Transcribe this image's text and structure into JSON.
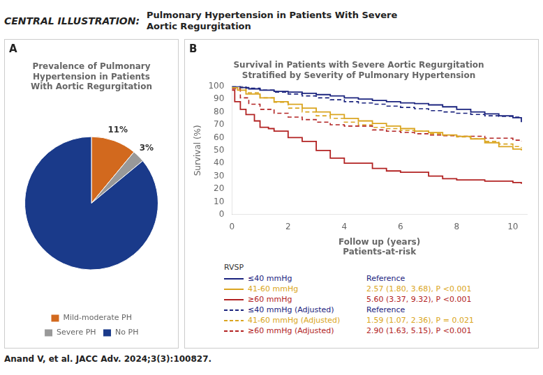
{
  "title": "CENTRAL ILLUSTRATION:",
  "subtitle": "Pulmonary Hypertension in Patients With Severe\nAortic Regurgitation",
  "annotations": [
    "Anand V, et al. JACC Adv. 2024;3(3):100827."
  ],
  "chart_data": [
    {
      "type": "pie",
      "title": "Prevalence of Pulmonary\nHypertension in Patients\nWith Aortic Regurgitation",
      "annotations": [
        "A"
      ],
      "categories": [
        "Mild-moderate PH",
        "Severe PH",
        "No PH"
      ],
      "values": [
        11,
        3,
        86
      ],
      "colors": [
        "#D2691E",
        "#999999",
        "#1a3a8a"
      ],
      "data_labels": true,
      "value_labels": [
        "11%",
        "3%",
        null
      ],
      "legend": "bottom"
    },
    {
      "type": "step",
      "title": "Survival in Patients with Severe Aortic Regurgitation\nStratified by Severity of Pulmonary Hypertension",
      "annotations": [
        "B",
        "RVSP",
        "Patients-at-risk"
      ],
      "xlabel": "Follow up (years)",
      "ylabel": "Survival (%)",
      "xlim": [
        0,
        10.5
      ],
      "ylim": [
        0,
        100
      ],
      "xticks": [
        0,
        2,
        4,
        6,
        8,
        10
      ],
      "yticks": [
        0,
        10,
        20,
        30,
        40,
        50,
        60,
        70,
        80,
        90,
        100
      ],
      "grid": false,
      "legend": "bottom",
      "series": [
        {
          "name": "≤40 mmHg",
          "annotation": "Reference",
          "color": "#1a237e",
          "line_style": "solid",
          "x": [
            0,
            0.3,
            0.6,
            1,
            1.5,
            2,
            2.5,
            3,
            3.5,
            4,
            4.5,
            5,
            5.5,
            6,
            6.5,
            7,
            7.5,
            8,
            8.5,
            9,
            9.5,
            10,
            10.3
          ],
          "values": [
            100,
            99,
            98,
            97,
            96,
            95.5,
            94.5,
            93.5,
            92.5,
            91,
            90,
            89,
            88,
            87,
            86.5,
            85.5,
            84,
            82,
            80,
            78.5,
            77,
            75.5,
            72
          ]
        },
        {
          "name": "41-60 mmHg",
          "annotation": "2.57 (1.80, 3.68), P <0.001",
          "color": "#DAA520",
          "line_style": "solid",
          "x": [
            0,
            0.2,
            0.5,
            1,
            1.5,
            2,
            2.5,
            3,
            3.5,
            4,
            4.5,
            5,
            5.5,
            6,
            6.5,
            7,
            7.5,
            8,
            8.5,
            9,
            9.5,
            10,
            10.3
          ],
          "values": [
            99,
            97,
            94,
            91,
            88,
            86,
            83,
            80,
            78,
            75,
            73,
            71,
            69,
            67,
            65,
            64,
            62,
            61,
            59,
            56,
            53,
            51,
            50
          ]
        },
        {
          "name": "≥60 mmHg",
          "annotation": "5.60 (3.37, 9.32), P <0.001",
          "color": "#b22222",
          "line_style": "solid",
          "x": [
            0,
            0.1,
            0.3,
            0.5,
            0.8,
            1,
            1.3,
            1.5,
            2,
            2.5,
            3,
            3.5,
            4,
            5,
            5.5,
            6,
            7,
            7.5,
            8,
            9,
            10,
            10.3
          ],
          "values": [
            97,
            88,
            82,
            78,
            73,
            68,
            67,
            65,
            60,
            57,
            50,
            44,
            40,
            36,
            34,
            33,
            30,
            28,
            27,
            26,
            25,
            24
          ]
        },
        {
          "name": "≤40 mmHg (Adjusted)",
          "annotation": "Reference",
          "color": "#1a237e",
          "line_style": "dashed",
          "x": [
            0,
            0.5,
            1,
            1.5,
            2,
            2.5,
            3,
            3.5,
            4,
            4.5,
            5,
            5.5,
            6,
            6.5,
            7,
            7.5,
            8,
            8.5,
            9,
            9.5,
            10,
            10.3
          ],
          "values": [
            100,
            98.5,
            97,
            95.5,
            94,
            92.5,
            91,
            89.5,
            88,
            87,
            86,
            84.5,
            83.5,
            82.5,
            81,
            80,
            79,
            78,
            77,
            76.5,
            76,
            75
          ]
        },
        {
          "name": "41-60 mmHg (Adjusted)",
          "annotation": "1.59 (1.07, 2.36), P = 0.021",
          "color": "#DAA520",
          "line_style": "dashed",
          "x": [
            0,
            0.5,
            1,
            1.5,
            2,
            2.5,
            3,
            3.5,
            4,
            4.5,
            5,
            5.5,
            6,
            6.5,
            7,
            7.5,
            8,
            8.5,
            9,
            9.5,
            10,
            10.3
          ],
          "values": [
            99,
            95,
            91,
            87.5,
            83,
            80,
            77,
            75,
            72,
            70,
            68,
            67,
            65.5,
            65,
            63,
            62,
            60.5,
            59,
            57,
            55,
            53,
            52
          ]
        },
        {
          "name": "≥60 mmHg (Adjusted)",
          "annotation": "2.90 (1.63, 5.15), P <0.001",
          "color": "#b22222",
          "line_style": "dashed",
          "x": [
            0,
            0.3,
            0.6,
            1,
            1.5,
            2,
            2.5,
            3,
            3.5,
            4,
            5,
            5.5,
            6,
            6.5,
            7,
            7.5,
            8,
            9,
            10,
            10.3
          ],
          "values": [
            98,
            91,
            86,
            82,
            79,
            76,
            74,
            72,
            70,
            69,
            66,
            65,
            64,
            63,
            62,
            61.5,
            61,
            59.5,
            58,
            57
          ]
        }
      ]
    }
  ]
}
